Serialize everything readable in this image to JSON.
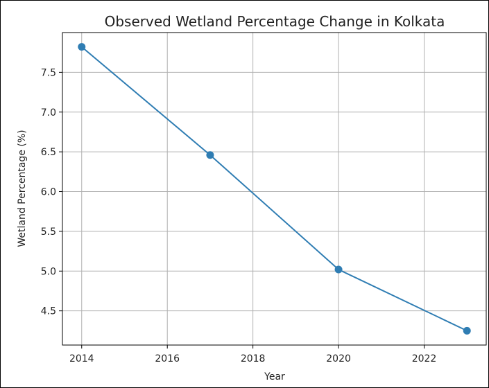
{
  "chart_data": {
    "type": "line",
    "title": "Observed Wetland Percentage Change in Kolkata",
    "xlabel": "Year",
    "ylabel": "Wetland Percentage (%)",
    "x": [
      2014,
      2017,
      2020,
      2023
    ],
    "series": [
      {
        "values": [
          7.82,
          6.46,
          5.02,
          4.25
        ],
        "color": "#2f7db3",
        "marker": "circle"
      }
    ],
    "xlim": [
      2013.55,
      2023.45
    ],
    "ylim": [
      4.07,
      8.0
    ],
    "xticks": [
      2014,
      2016,
      2018,
      2020,
      2022
    ],
    "xtick_labels": [
      "2014",
      "2016",
      "2018",
      "2020",
      "2022"
    ],
    "yticks": [
      4.5,
      5.0,
      5.5,
      6.0,
      6.5,
      7.0,
      7.5
    ],
    "ytick_labels": [
      "4.5",
      "5.0",
      "5.5",
      "6.0",
      "6.5",
      "7.0",
      "7.5"
    ],
    "grid": true,
    "legend": false
  }
}
